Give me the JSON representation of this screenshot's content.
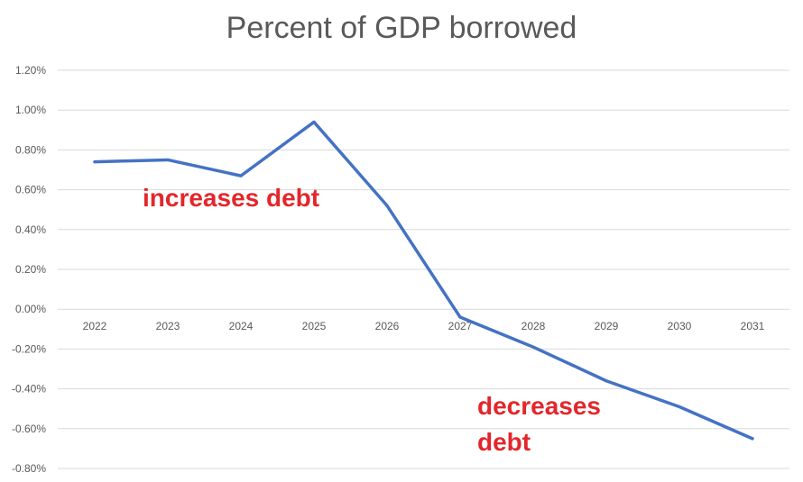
{
  "chart_data": {
    "type": "line",
    "title": "Percent of GDP borrowed",
    "x": [
      "2022",
      "2023",
      "2024",
      "2025",
      "2026",
      "2027",
      "2028",
      "2029",
      "2030",
      "2031"
    ],
    "series": [
      {
        "values": [
          0.74,
          0.75,
          0.67,
          0.94,
          0.52,
          -0.04,
          -0.19,
          -0.36,
          -0.49,
          -0.65
        ],
        "color": "#4472c4"
      }
    ],
    "y_ticks": [
      "1.20%",
      "1.00%",
      "0.80%",
      "0.60%",
      "0.40%",
      "0.20%",
      "0.00%",
      "-0.20%",
      "-0.40%",
      "-0.60%",
      "-0.80%"
    ],
    "ylim": [
      -0.8,
      1.2
    ],
    "y_unit": "%",
    "grid": true,
    "gridline_color": "#d9d9d9",
    "annotations": [
      {
        "lines": [
          "increases debt"
        ],
        "color": "#e3262b"
      },
      {
        "lines": [
          "decreases",
          "debt"
        ],
        "color": "#e3262b"
      }
    ]
  }
}
